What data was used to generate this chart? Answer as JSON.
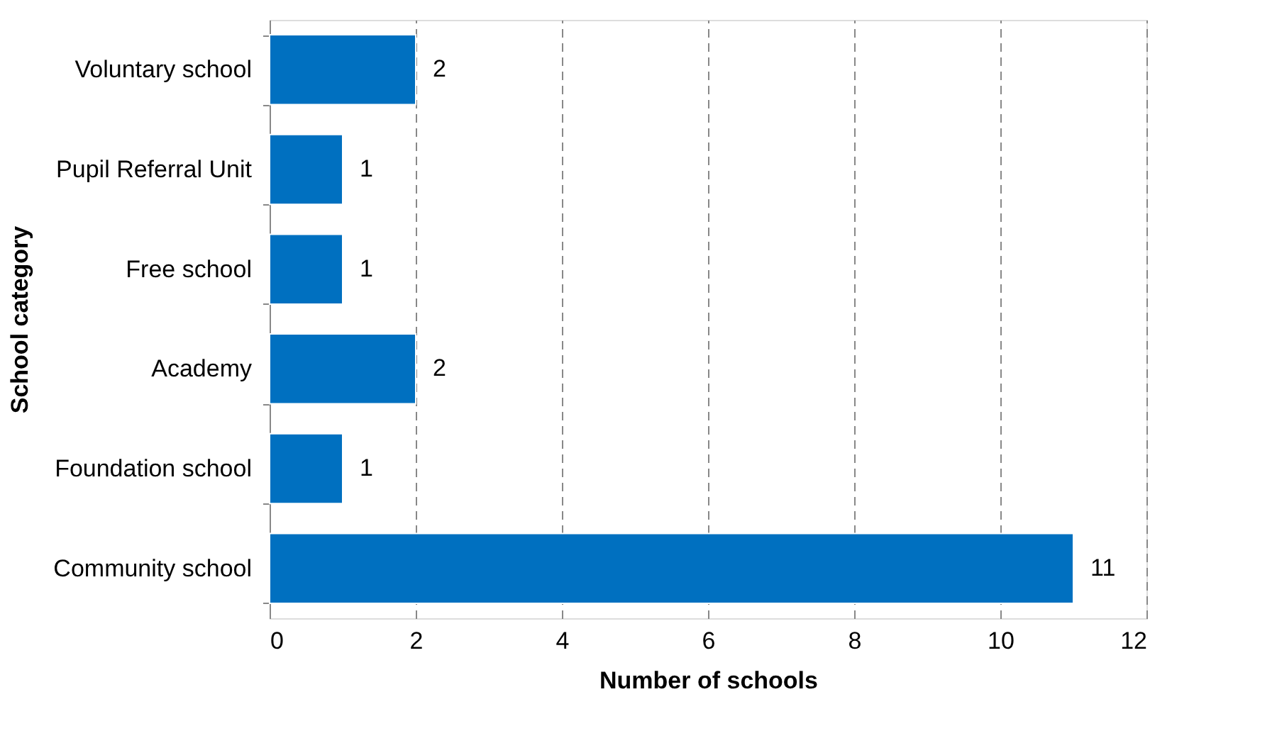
{
  "chart_data": {
    "type": "bar",
    "orientation": "horizontal",
    "xlabel": "Number of schools",
    "ylabel": "School category",
    "categories": [
      "Voluntary school",
      "Pupil Referral Unit",
      "Free school",
      "Academy",
      "Foundation school",
      "Community school"
    ],
    "values": [
      2,
      1,
      1,
      2,
      1,
      11
    ],
    "color": "#0070c0",
    "xlim": [
      0,
      12
    ],
    "xticks": [
      0,
      2,
      4,
      6,
      8,
      10,
      12
    ],
    "grid": "x",
    "data_labels": true
  }
}
